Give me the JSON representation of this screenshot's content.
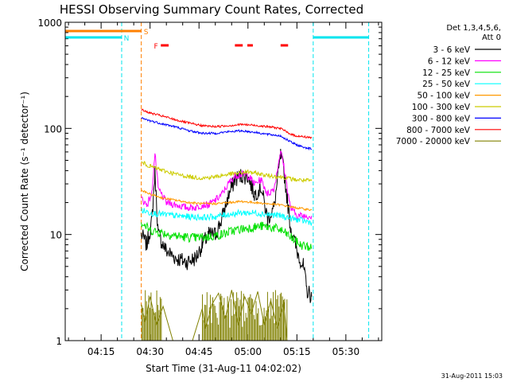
{
  "chart_data": {
    "type": "line",
    "title": "HESSI Observing Summary Count Rates, Corrected",
    "xlabel": "Start Time (31-Aug-11 04:02:02)",
    "ylabel": "Corrected Count Rate (s⁻¹ detector⁻¹)",
    "yscale": "log",
    "ylim": [
      1,
      1000
    ],
    "xlim_minutes": [
      4.0,
      101.0
    ],
    "x_ticks": [
      {
        "label": "04:15",
        "value": 15
      },
      {
        "label": "04:30",
        "value": 30
      },
      {
        "label": "04:45",
        "value": 45
      },
      {
        "label": "05:00",
        "value": 60
      },
      {
        "label": "05:15",
        "value": 75
      },
      {
        "label": "05:30",
        "value": 90
      }
    ],
    "y_ticks": [
      {
        "label": "1",
        "value": 1
      },
      {
        "label": "10",
        "value": 10
      },
      {
        "label": "100",
        "value": 100
      },
      {
        "label": "1000",
        "value": 1000
      }
    ],
    "legend": {
      "placement": "right",
      "header_line1": "Det 1,3,4,5,6,",
      "header_line2": "Att 0"
    },
    "data_window_minutes": [
      27.3,
      79.5
    ],
    "series": [
      {
        "name": "3 - 6 keV",
        "color": "#000000",
        "points": [
          [
            27.3,
            10
          ],
          [
            29,
            8
          ],
          [
            30.5,
            13
          ],
          [
            31.5,
            38
          ],
          [
            32.5,
            10
          ],
          [
            35,
            7
          ],
          [
            38,
            6
          ],
          [
            41,
            5.5
          ],
          [
            44,
            6
          ],
          [
            46,
            8
          ],
          [
            48,
            10
          ],
          [
            50,
            10
          ],
          [
            52,
            14
          ],
          [
            54,
            23
          ],
          [
            56,
            33
          ],
          [
            58,
            36
          ],
          [
            60,
            35
          ],
          [
            62,
            24
          ],
          [
            64,
            28
          ],
          [
            66,
            14
          ],
          [
            68,
            18
          ],
          [
            70,
            55
          ],
          [
            71,
            40
          ],
          [
            73,
            12
          ],
          [
            75,
            7
          ],
          [
            77,
            5
          ],
          [
            78,
            3
          ],
          [
            79.5,
            2.6
          ]
        ]
      },
      {
        "name": "6 - 12 keV",
        "color": "#ff00ff",
        "points": [
          [
            27.3,
            22
          ],
          [
            29,
            19
          ],
          [
            30.5,
            24
          ],
          [
            31.5,
            58
          ],
          [
            32.5,
            27
          ],
          [
            35,
            20
          ],
          [
            38,
            19
          ],
          [
            41,
            18
          ],
          [
            44,
            18
          ],
          [
            46,
            19
          ],
          [
            48,
            19
          ],
          [
            50,
            21
          ],
          [
            52,
            24
          ],
          [
            54,
            30
          ],
          [
            56,
            36
          ],
          [
            58,
            37
          ],
          [
            60,
            36
          ],
          [
            62,
            30
          ],
          [
            64,
            33
          ],
          [
            66,
            24
          ],
          [
            68,
            27
          ],
          [
            70,
            62
          ],
          [
            71,
            44
          ],
          [
            73,
            18
          ],
          [
            75,
            15
          ],
          [
            77,
            15
          ],
          [
            79.5,
            15
          ]
        ]
      },
      {
        "name": "12 - 25 keV",
        "color": "#00e000",
        "points": [
          [
            27.3,
            13
          ],
          [
            30,
            11
          ],
          [
            33,
            10.5
          ],
          [
            36,
            10
          ],
          [
            40,
            9.5
          ],
          [
            44,
            9.3
          ],
          [
            48,
            9.5
          ],
          [
            52,
            10
          ],
          [
            56,
            11
          ],
          [
            60,
            11.5
          ],
          [
            64,
            12
          ],
          [
            68,
            11.5
          ],
          [
            70,
            11
          ],
          [
            72,
            10
          ],
          [
            74,
            9
          ],
          [
            76,
            8
          ],
          [
            79.5,
            7.5
          ]
        ]
      },
      {
        "name": "25 - 50 keV",
        "color": "#00ffff",
        "points": [
          [
            27.3,
            17
          ],
          [
            30,
            16
          ],
          [
            34,
            15.5
          ],
          [
            38,
            15
          ],
          [
            42,
            14.7
          ],
          [
            46,
            14.5
          ],
          [
            50,
            14.7
          ],
          [
            54,
            15.5
          ],
          [
            58,
            16
          ],
          [
            62,
            16
          ],
          [
            66,
            15.5
          ],
          [
            70,
            15
          ],
          [
            74,
            14
          ],
          [
            79.5,
            13
          ]
        ]
      },
      {
        "name": "50 - 100 keV",
        "color": "#ff9900",
        "points": [
          [
            27.3,
            26
          ],
          [
            30,
            24
          ],
          [
            34,
            22
          ],
          [
            38,
            21
          ],
          [
            42,
            20
          ],
          [
            46,
            19.5
          ],
          [
            50,
            19.5
          ],
          [
            54,
            20
          ],
          [
            58,
            20.5
          ],
          [
            62,
            20
          ],
          [
            66,
            19.5
          ],
          [
            70,
            19
          ],
          [
            74,
            18
          ],
          [
            79.5,
            17
          ]
        ]
      },
      {
        "name": "100 - 300 keV",
        "color": "#cccc00",
        "points": [
          [
            27.3,
            48
          ],
          [
            30,
            44
          ],
          [
            34,
            40
          ],
          [
            38,
            37
          ],
          [
            42,
            35
          ],
          [
            46,
            34
          ],
          [
            50,
            35
          ],
          [
            54,
            37
          ],
          [
            58,
            38
          ],
          [
            60,
            39
          ],
          [
            62,
            38
          ],
          [
            66,
            36
          ],
          [
            70,
            35
          ],
          [
            74,
            33
          ],
          [
            79.5,
            32
          ]
        ]
      },
      {
        "name": "300 - 800 keV",
        "color": "#0000ff",
        "points": [
          [
            27.3,
            125
          ],
          [
            30,
            118
          ],
          [
            34,
            110
          ],
          [
            38,
            103
          ],
          [
            42,
            95
          ],
          [
            46,
            90
          ],
          [
            50,
            90
          ],
          [
            54,
            93
          ],
          [
            58,
            95
          ],
          [
            62,
            92
          ],
          [
            66,
            88
          ],
          [
            70,
            85
          ],
          [
            72,
            78
          ],
          [
            74,
            72
          ],
          [
            76,
            68
          ],
          [
            79.5,
            64
          ]
        ]
      },
      {
        "name": "800 - 7000 keV",
        "color": "#ff0000",
        "points": [
          [
            27.3,
            150
          ],
          [
            30,
            140
          ],
          [
            34,
            130
          ],
          [
            38,
            120
          ],
          [
            42,
            112
          ],
          [
            46,
            106
          ],
          [
            50,
            104
          ],
          [
            54,
            106
          ],
          [
            58,
            109
          ],
          [
            62,
            107
          ],
          [
            66,
            104
          ],
          [
            70,
            100
          ],
          [
            72,
            92
          ],
          [
            74,
            86
          ],
          [
            76,
            84
          ],
          [
            79.5,
            82
          ]
        ]
      },
      {
        "name": "7000 - 20000 keV",
        "color": "#808000",
        "points": [
          [
            27.3,
            2.2
          ],
          [
            28.5,
            1.5
          ],
          [
            30,
            2.6
          ],
          [
            32,
            1.4
          ],
          [
            34,
            2.1
          ],
          [
            37,
            1.0
          ],
          [
            43,
            1.0
          ],
          [
            46,
            2.0
          ],
          [
            47,
            1.3
          ],
          [
            49,
            2.2
          ],
          [
            51,
            2.8
          ],
          [
            53,
            1.6
          ],
          [
            55,
            3.0
          ],
          [
            57,
            1.4
          ],
          [
            59,
            2.6
          ],
          [
            61,
            1.8
          ],
          [
            63,
            2.9
          ],
          [
            65,
            1.4
          ],
          [
            67,
            2.4
          ],
          [
            69,
            1.3
          ],
          [
            71,
            2.3
          ],
          [
            72,
            1.0
          ],
          [
            79.5,
            1.0
          ]
        ]
      }
    ],
    "flags": [
      {
        "label": "S",
        "color": "#ff8000",
        "segments": [
          [
            4,
            27.3
          ]
        ]
      },
      {
        "label": "N",
        "color": "#00e5ee",
        "segments": [
          [
            4,
            21.3
          ],
          [
            80,
            97
          ]
        ]
      },
      {
        "label": "F",
        "color": "#ff0000",
        "segments": [
          [
            33.3,
            35.7
          ],
          [
            56,
            58.4
          ],
          [
            59.8,
            61.5
          ],
          [
            70,
            72.3
          ]
        ]
      }
    ],
    "vertical_markers": [
      {
        "minute": 21.3,
        "color": "#00e5ee"
      },
      {
        "minute": 27.3,
        "color": "#ff8000"
      },
      {
        "minute": 80,
        "color": "#00e5ee"
      },
      {
        "minute": 97,
        "color": "#00e5ee"
      }
    ]
  },
  "footer": {
    "date_stamp": "31-Aug-2011 15:03"
  }
}
